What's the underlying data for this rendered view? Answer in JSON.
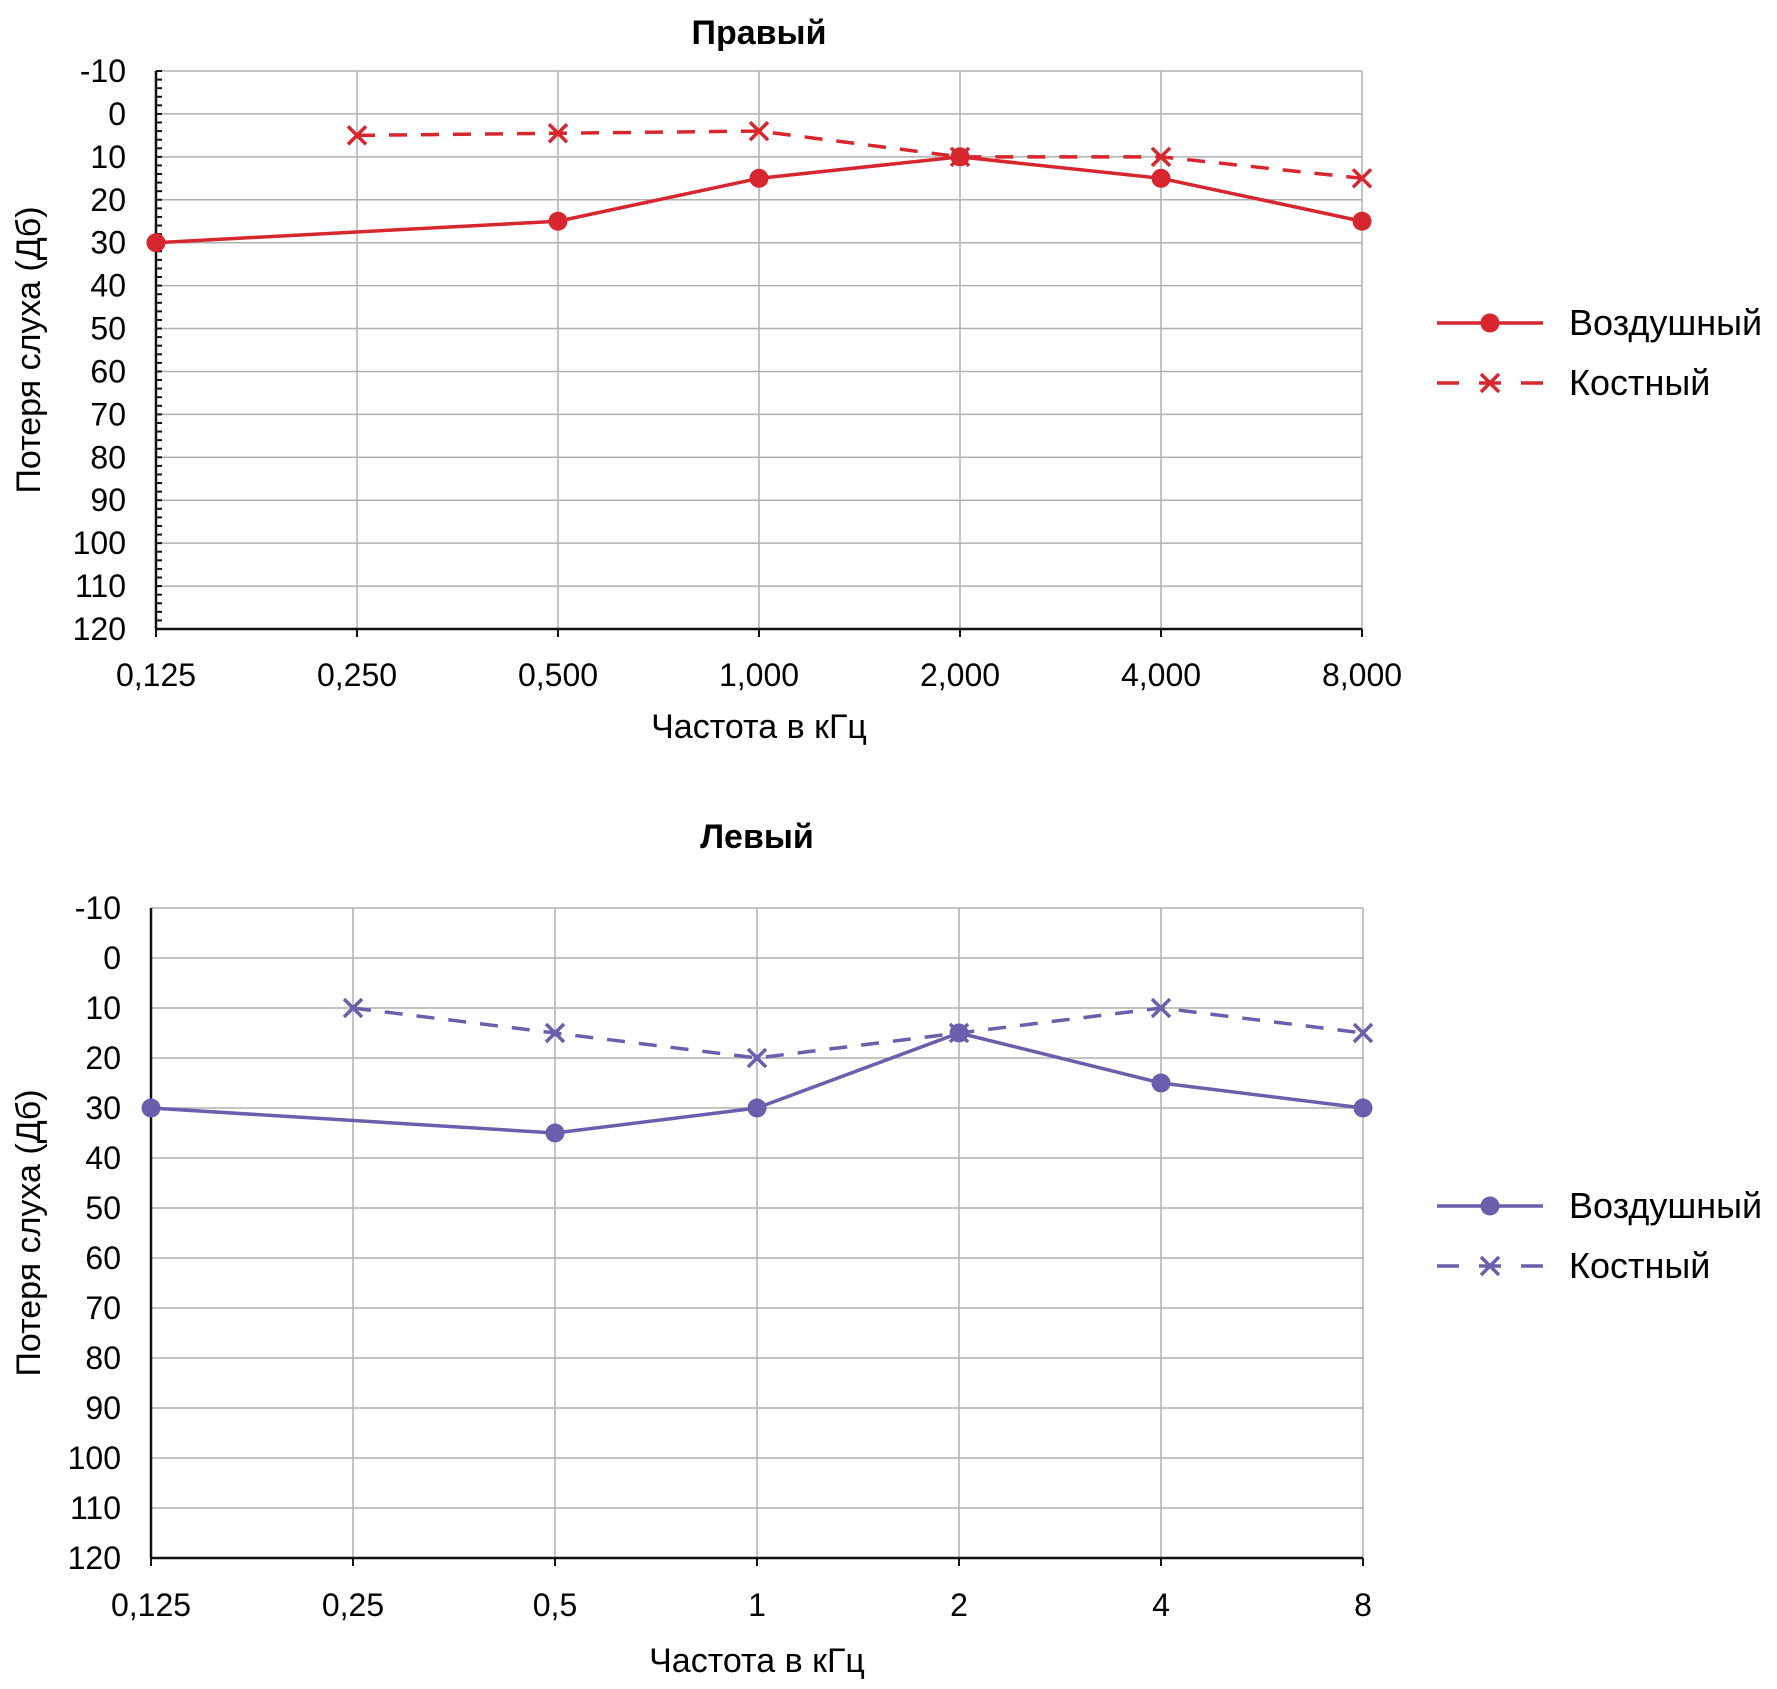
{
  "chart_data": [
    {
      "type": "line",
      "title": "Правый",
      "xlabel": "Частота в кГц",
      "ylabel": "Потеря слуха (Дб)",
      "categories": [
        "0,125",
        "0,250",
        "0,500",
        "1,000",
        "2,000",
        "4,000",
        "8,000"
      ],
      "yticks": [
        "-10",
        "0",
        "10",
        "20",
        "30",
        "40",
        "50",
        "60",
        "70",
        "80",
        "90",
        "100",
        "110",
        "120"
      ],
      "ylim": [
        -10,
        120
      ],
      "y_inverted": true,
      "grid": true,
      "legend_position": "right",
      "color": "#d7262e",
      "series": [
        {
          "name": "Воздушный",
          "style": "solid-circle",
          "values": [
            30,
            null,
            25,
            15,
            10,
            15,
            25
          ]
        },
        {
          "name": "Костный",
          "style": "dashed-cross",
          "values": [
            null,
            5,
            4.5,
            4,
            10,
            10,
            15
          ]
        }
      ]
    },
    {
      "type": "line",
      "title": "Левый",
      "xlabel": "Частота в кГц",
      "ylabel": "Потеря слуха (Дб)",
      "categories": [
        "0,125",
        "0,25",
        "0,5",
        "1",
        "2",
        "4",
        "8"
      ],
      "yticks": [
        "-10",
        "0",
        "10",
        "20",
        "30",
        "40",
        "50",
        "60",
        "70",
        "80",
        "90",
        "100",
        "110",
        "120"
      ],
      "ylim": [
        -10,
        120
      ],
      "y_inverted": true,
      "grid": true,
      "legend_position": "right",
      "color": "#6a5fad",
      "series": [
        {
          "name": "Воздушный",
          "style": "solid-circle",
          "values": [
            30,
            null,
            35,
            30,
            15,
            25,
            30
          ]
        },
        {
          "name": "Костный",
          "style": "dashed-cross",
          "values": [
            null,
            10,
            15,
            20,
            15,
            10,
            15
          ]
        }
      ]
    }
  ]
}
